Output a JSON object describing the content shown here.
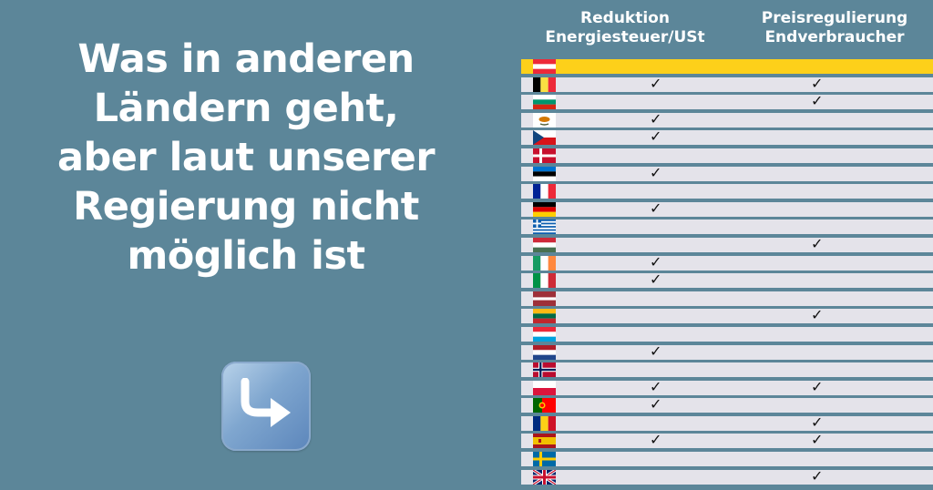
{
  "headline": {
    "lines": [
      "Was in anderen",
      "Ländern geht,",
      "aber laut unserer",
      "Regierung nicht",
      "möglich ist"
    ]
  },
  "table": {
    "col1": {
      "line1": "Reduktion",
      "line2": "Energiesteuer/USt"
    },
    "col2": {
      "line1": "Preisregulierung",
      "line2": "Endverbraucher"
    },
    "check_symbol": "✓",
    "highlight_color": "#fdd01a",
    "rows": [
      {
        "country": "Austria",
        "col1": false,
        "col2": false,
        "highlight": true
      },
      {
        "country": "Belgium",
        "col1": true,
        "col2": true
      },
      {
        "country": "Bulgaria",
        "col1": false,
        "col2": true
      },
      {
        "country": "Cyprus",
        "col1": true,
        "col2": false
      },
      {
        "country": "Czech Republic",
        "col1": true,
        "col2": false
      },
      {
        "country": "Denmark",
        "col1": false,
        "col2": false
      },
      {
        "country": "Estonia",
        "col1": true,
        "col2": false
      },
      {
        "country": "France",
        "col1": false,
        "col2": false
      },
      {
        "country": "Germany",
        "col1": true,
        "col2": false
      },
      {
        "country": "Greece",
        "col1": false,
        "col2": false
      },
      {
        "country": "Hungary",
        "col1": false,
        "col2": true
      },
      {
        "country": "Ireland",
        "col1": true,
        "col2": false
      },
      {
        "country": "Italy",
        "col1": true,
        "col2": false
      },
      {
        "country": "Latvia",
        "col1": false,
        "col2": false
      },
      {
        "country": "Lithuania",
        "col1": false,
        "col2": true
      },
      {
        "country": "Luxembourg",
        "col1": false,
        "col2": false
      },
      {
        "country": "Netherlands",
        "col1": true,
        "col2": false
      },
      {
        "country": "Norway",
        "col1": false,
        "col2": false
      },
      {
        "country": "Poland",
        "col1": true,
        "col2": true
      },
      {
        "country": "Portugal",
        "col1": true,
        "col2": false
      },
      {
        "country": "Romania",
        "col1": false,
        "col2": true
      },
      {
        "country": "Spain",
        "col1": true,
        "col2": true
      },
      {
        "country": "Sweden",
        "col1": false,
        "col2": false
      },
      {
        "country": "United Kingdom",
        "col1": false,
        "col2": true
      }
    ]
  },
  "arrow_icon": "curved-right-arrow-icon"
}
